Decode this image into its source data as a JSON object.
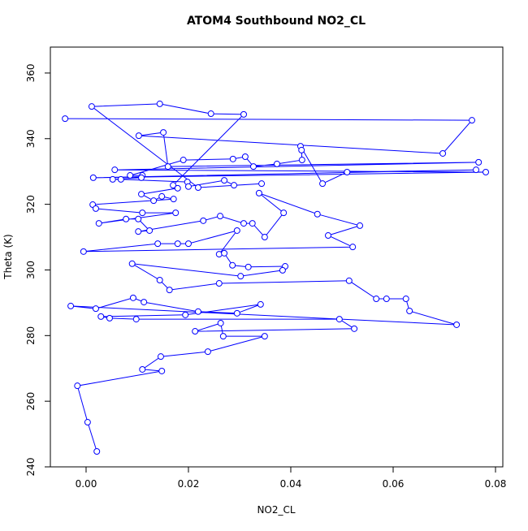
{
  "chart_data": {
    "type": "scatter-line",
    "title": "ATOM4 Southbound NO2_CL",
    "x_label": "NO2_CL",
    "y_label": "Theta (K)",
    "color": "#0000ff",
    "xlim": [
      -0.00698,
      0.08143
    ],
    "ylim": [
      240,
      367.9
    ],
    "xticks": [
      {
        "value": 0,
        "label": "0.00"
      },
      {
        "value": 0.02,
        "label": "0.02"
      },
      {
        "value": 0.04,
        "label": "0.04"
      },
      {
        "value": 0.06,
        "label": "0.06"
      },
      {
        "value": 0.08,
        "label": "0.08"
      }
    ],
    "yticks": [
      240,
      260,
      280,
      300,
      320,
      340,
      360
    ],
    "x": [
      -0.0041,
      0.0754,
      0.0697,
      0.0103,
      0.0151,
      0.016,
      0.0767,
      0.0056,
      0.0781,
      0.0014,
      0.0762,
      0.051,
      0.0462,
      0.0419,
      0.0421,
      0.0422,
      0.0373,
      0.0327,
      0.0311,
      0.0287,
      0.019,
      0.0086,
      0.011,
      0.0108,
      0.0052,
      0.0068,
      0.0198,
      0.02,
      0.027,
      0.0289,
      0.0343,
      0.0219,
      0.0011,
      0.0144,
      0.0244,
      0.0308,
      0.017,
      0.0179,
      0.0108,
      0.0132,
      0.0148,
      0.0171,
      0.0013,
      0.0019,
      0.011,
      0.0175,
      0.0025,
      0.0078,
      0.0102,
      0.0124,
      0.0102,
      0.0229,
      0.0262,
      0.0308,
      0.0325,
      0.0349,
      0.0386,
      0.0338,
      0.0452,
      0.0535,
      0.0473,
      0.0521,
      -0.0005,
      0.014,
      0.0179,
      0.02,
      0.0295,
      0.026,
      0.027,
      0.0286,
      0.0317,
      0.0389,
      0.0384,
      0.0302,
      0.009,
      0.0144,
      0.0163,
      0.026,
      0.0514,
      0.0567,
      0.0587,
      0.0625,
      0.0632,
      0.0724,
      -0.003,
      0.0019,
      0.0092,
      0.0113,
      0.0219,
      0.0295,
      0.0341,
      0.0194,
      0.0029,
      0.0046,
      0.0098,
      0.0495,
      0.0524,
      0.0213,
      0.0263,
      0.0268,
      0.0349,
      0.0238,
      0.0146,
      0.011,
      0.0148,
      -0.0017,
      0.0003,
      0.0021
    ],
    "y": [
      346.1,
      345.6,
      335.5,
      340.9,
      341.9,
      331.5,
      332.8,
      330.5,
      329.8,
      328.1,
      330.5,
      329.8,
      326.3,
      337.7,
      336.5,
      333.5,
      332.3,
      331.5,
      334.5,
      333.8,
      333.5,
      328.8,
      328.8,
      328.1,
      327.6,
      327.6,
      326.8,
      325.4,
      327.3,
      325.8,
      326.3,
      325.1,
      349.8,
      350.6,
      347.6,
      347.4,
      325.8,
      324.9,
      323.1,
      321.1,
      322.4,
      321.6,
      319.9,
      318.7,
      317.4,
      317.4,
      314.2,
      315.5,
      315.5,
      312.0,
      311.7,
      315.0,
      316.4,
      314.2,
      314.2,
      310.0,
      317.4,
      323.4,
      317.0,
      313.5,
      310.5,
      307.0,
      305.6,
      308.0,
      308.0,
      308.0,
      312.0,
      304.8,
      305.1,
      301.4,
      300.9,
      301.1,
      299.9,
      298.1,
      301.9,
      296.9,
      293.9,
      295.9,
      296.7,
      291.2,
      291.2,
      291.2,
      287.5,
      283.3,
      289.0,
      288.2,
      291.5,
      290.2,
      287.3,
      286.8,
      289.5,
      286.3,
      285.8,
      285.3,
      285.0,
      285.0,
      282.1,
      281.3,
      283.8,
      279.8,
      279.8,
      275.1,
      273.6,
      269.7,
      269.2,
      264.7,
      253.6,
      244.7
    ]
  }
}
